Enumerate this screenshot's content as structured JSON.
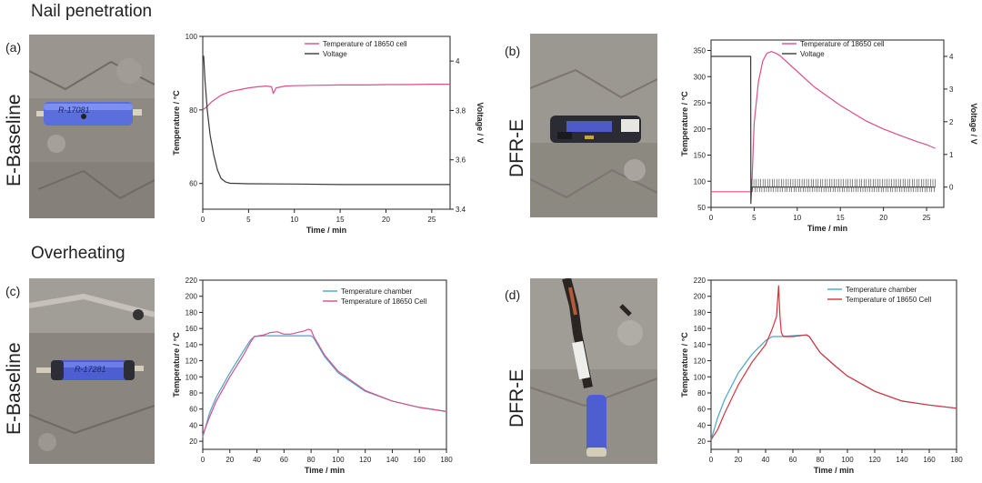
{
  "sections": {
    "top_title": "Nail penetration",
    "bottom_title": "Overheating"
  },
  "panels": {
    "a": {
      "letter": "(a)",
      "side_label": "E-Baseline"
    },
    "b": {
      "letter": "(b)",
      "side_label": "DFR-E"
    },
    "c": {
      "letter": "(c)",
      "side_label": "E-Baseline"
    },
    "d": {
      "letter": "(d)",
      "side_label": "DFR-E"
    }
  },
  "photos": {
    "a": {
      "cell_label": "R-17081"
    },
    "c": {
      "cell_label": "R-17281"
    }
  },
  "colors": {
    "temperature": "#d9508a",
    "voltage": "#3a3a3a",
    "chamber": "#4aa6c8",
    "cell_d": "#d8333c",
    "cell_c": "#d9508a",
    "axis": "#222222"
  },
  "chart_data": [
    {
      "id": "a",
      "type": "line",
      "title": "",
      "xlabel": "Time / min",
      "ylabel": "Temperature / °C",
      "ylabel_right": "Voltage / V",
      "xlim": [
        0,
        27
      ],
      "ylim": [
        53,
        100
      ],
      "ylim_right": [
        3.4,
        4.1
      ],
      "xticks": [
        0,
        5,
        10,
        15,
        20,
        25
      ],
      "yticks": [
        60,
        80,
        100
      ],
      "yticks_right": [
        3.4,
        3.6,
        3.8,
        4.0
      ],
      "legend_position": "top-right",
      "series": [
        {
          "name": "Temperature of 18650 cell",
          "axis": "left",
          "color": "#d9508a",
          "x": [
            0,
            0.5,
            1,
            2,
            3,
            4,
            5,
            6,
            7,
            7.5,
            7.7,
            8,
            9,
            10,
            12,
            15,
            18,
            20,
            22,
            25,
            27
          ],
          "y": [
            80,
            81,
            82.3,
            84,
            85,
            85.5,
            86,
            86.3,
            86.5,
            86.3,
            84.5,
            86,
            86.5,
            86.6,
            86.7,
            86.8,
            86.8,
            86.9,
            86.9,
            87,
            87
          ]
        },
        {
          "name": "Voltage",
          "axis": "right",
          "color": "#3a3a3a",
          "x": [
            0,
            0.1,
            0.25,
            0.5,
            0.8,
            1.2,
            1.6,
            2.0,
            2.5,
            3.0,
            5,
            10,
            15,
            20,
            25,
            27
          ],
          "y": [
            4.0,
            4.02,
            3.92,
            3.8,
            3.7,
            3.62,
            3.56,
            3.525,
            3.51,
            3.505,
            3.503,
            3.502,
            3.5,
            3.5,
            3.5,
            3.5
          ]
        }
      ]
    },
    {
      "id": "b",
      "type": "line",
      "title": "",
      "xlabel": "Time / min",
      "ylabel": "Temperature / °C",
      "ylabel_right": "Voltage / V",
      "xlim": [
        0,
        27
      ],
      "ylim": [
        50,
        370
      ],
      "ylim_right": [
        -0.62,
        4.5
      ],
      "xticks": [
        0,
        5,
        10,
        15,
        20,
        25
      ],
      "yticks": [
        50,
        100,
        150,
        200,
        250,
        300,
        350
      ],
      "yticks_right": [
        0,
        1,
        2,
        3,
        4
      ],
      "legend_position": "top-right",
      "series": [
        {
          "name": "Temperature of 18650 cell",
          "axis": "left",
          "color": "#d9508a",
          "x": [
            0,
            4.5,
            4.7,
            5.0,
            5.5,
            6.0,
            6.5,
            7.0,
            7.5,
            8,
            10,
            12,
            15,
            18,
            20,
            22,
            24,
            25,
            26
          ],
          "y": [
            80,
            80,
            80,
            210,
            290,
            330,
            345,
            348,
            345,
            340,
            310,
            280,
            245,
            215,
            200,
            187,
            175,
            170,
            163
          ]
        },
        {
          "name": "Voltage",
          "axis": "right",
          "color": "#3a3a3a",
          "x": [
            0,
            4.6,
            4.62,
            4.7,
            26
          ],
          "y": [
            4.0,
            4.0,
            -0.5,
            0.0,
            0.0
          ],
          "noise_from": 4.7
        }
      ]
    },
    {
      "id": "c",
      "type": "line",
      "title": "",
      "xlabel": "Time / min",
      "ylabel": "Temperature / °C",
      "xlim": [
        0,
        180
      ],
      "ylim": [
        10,
        220
      ],
      "xticks": [
        0,
        20,
        40,
        60,
        80,
        100,
        120,
        140,
        160,
        180
      ],
      "yticks": [
        20,
        40,
        60,
        80,
        100,
        120,
        140,
        160,
        180,
        200,
        220
      ],
      "legend_position": "top-right",
      "series": [
        {
          "name": "Temperature chamber",
          "color": "#4aa6c8",
          "x": [
            0,
            5,
            10,
            20,
            30,
            35,
            38,
            45,
            60,
            75,
            80,
            82,
            90,
            100,
            120,
            140,
            160,
            180
          ],
          "y": [
            25,
            55,
            75,
            105,
            132,
            145,
            150,
            151,
            151,
            151,
            151,
            148,
            125,
            105,
            82,
            70,
            62,
            57
          ]
        },
        {
          "name": "Temperature of 18650 Cell",
          "color": "#d9508a",
          "x": [
            0,
            5,
            10,
            20,
            30,
            35,
            38,
            45,
            50,
            55,
            60,
            65,
            70,
            75,
            78,
            80,
            82,
            90,
            100,
            120,
            140,
            160,
            180
          ],
          "y": [
            28,
            50,
            70,
            100,
            127,
            142,
            150,
            152,
            155,
            156,
            153,
            153,
            155,
            157,
            159,
            158,
            150,
            127,
            107,
            83,
            70,
            62,
            57
          ]
        }
      ]
    },
    {
      "id": "d",
      "type": "line",
      "title": "",
      "xlabel": "Time / min",
      "ylabel": "Temperature / °C",
      "xlim": [
        0,
        180
      ],
      "ylim": [
        10,
        220
      ],
      "xticks": [
        0,
        20,
        40,
        60,
        80,
        100,
        120,
        140,
        160,
        180
      ],
      "yticks": [
        20,
        40,
        60,
        80,
        100,
        120,
        140,
        160,
        180,
        200,
        220
      ],
      "legend_position": "top-right",
      "series": [
        {
          "name": "Temperature chamber",
          "color": "#4aa6c8",
          "x": [
            0,
            5,
            10,
            20,
            30,
            40,
            45,
            50,
            60,
            70,
            72,
            80,
            90,
            100,
            120,
            140,
            160,
            180
          ],
          "y": [
            22,
            50,
            72,
            105,
            128,
            145,
            150,
            150,
            151,
            152,
            150,
            130,
            115,
            101,
            82,
            70,
            65,
            61
          ]
        },
        {
          "name": "Temperature of 18650 Cell",
          "color": "#d8333c",
          "x": [
            0,
            5,
            10,
            20,
            30,
            40,
            45,
            48,
            49.5,
            50.5,
            51.5,
            53,
            60,
            70,
            72,
            80,
            90,
            100,
            120,
            140,
            160,
            180
          ],
          "y": [
            22,
            35,
            55,
            90,
            118,
            140,
            160,
            175,
            213,
            175,
            155,
            150,
            150,
            152,
            150,
            130,
            115,
            101,
            82,
            70,
            65,
            61
          ]
        }
      ]
    }
  ]
}
